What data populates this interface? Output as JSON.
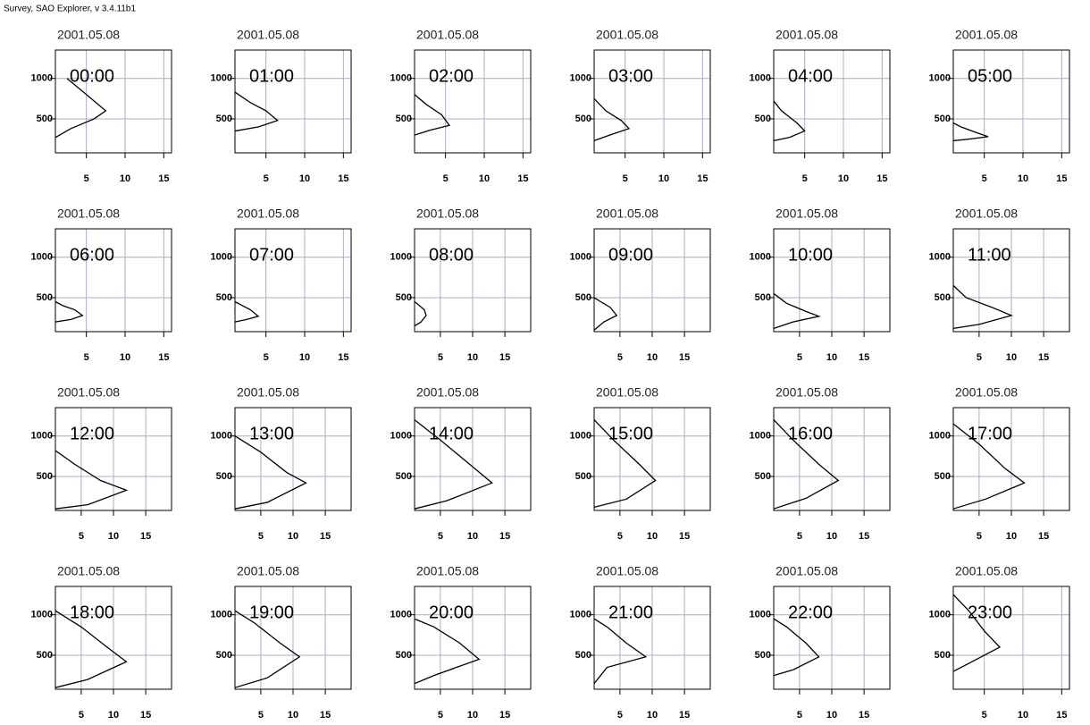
{
  "header": "Survey, SAO Explorer, v 3.4.11b1",
  "chart_data": [
    {
      "type": "line",
      "title": "2001.05.08",
      "annotation": "00:00",
      "x": [
        1,
        3,
        6,
        7.5,
        5,
        2.5
      ],
      "series": [
        {
          "color": "#000000",
          "values": [
            270,
            380,
            500,
            600,
            800,
            1000
          ]
        }
      ],
      "xlim": [
        1,
        16
      ],
      "ylim": [
        80,
        1350
      ],
      "xticks": [
        5,
        10,
        15
      ],
      "yticks": [
        500,
        1000
      ],
      "grid": true
    },
    {
      "type": "line",
      "title": "2001.05.08",
      "annotation": "01:00",
      "x": [
        1,
        4,
        6.5,
        5,
        3,
        1
      ],
      "series": [
        {
          "color": "#000000",
          "values": [
            350,
            400,
            480,
            600,
            700,
            830
          ]
        }
      ],
      "xlim": [
        1,
        16
      ],
      "ylim": [
        80,
        1350
      ],
      "xticks": [
        5,
        10,
        15
      ],
      "yticks": [
        500,
        1000
      ],
      "grid": true
    },
    {
      "type": "line",
      "title": "2001.05.08",
      "annotation": "02:00",
      "x": [
        1,
        3,
        5.5,
        4.5,
        2.5,
        1
      ],
      "series": [
        {
          "color": "#000000",
          "values": [
            300,
            360,
            420,
            550,
            680,
            800
          ]
        }
      ],
      "xlim": [
        1,
        16
      ],
      "ylim": [
        80,
        1350
      ],
      "xticks": [
        5,
        10,
        15
      ],
      "yticks": [
        500,
        1000
      ],
      "grid": true
    },
    {
      "type": "line",
      "title": "2001.05.08",
      "annotation": "03:00",
      "x": [
        1,
        3,
        5.5,
        4.5,
        2.5,
        1
      ],
      "series": [
        {
          "color": "#000000",
          "values": [
            230,
            300,
            380,
            480,
            600,
            750
          ]
        }
      ],
      "xlim": [
        1,
        16
      ],
      "ylim": [
        80,
        1350
      ],
      "xticks": [
        5,
        10,
        15
      ],
      "yticks": [
        500,
        1000
      ],
      "grid": true
    },
    {
      "type": "line",
      "title": "2001.05.08",
      "annotation": "04:00",
      "x": [
        1,
        3,
        5,
        4,
        2,
        1
      ],
      "series": [
        {
          "color": "#000000",
          "values": [
            230,
            270,
            350,
            450,
            600,
            720
          ]
        }
      ],
      "xlim": [
        1,
        16
      ],
      "ylim": [
        80,
        1350
      ],
      "xticks": [
        5,
        10,
        15
      ],
      "yticks": [
        500,
        1000
      ],
      "grid": true
    },
    {
      "type": "line",
      "title": "2001.05.08",
      "annotation": "05:00",
      "x": [
        1,
        3,
        5.5,
        4,
        2,
        1
      ],
      "series": [
        {
          "color": "#000000",
          "values": [
            230,
            250,
            280,
            330,
            400,
            450
          ]
        }
      ],
      "xlim": [
        1,
        16
      ],
      "ylim": [
        80,
        1350
      ],
      "xticks": [
        5,
        10,
        15
      ],
      "yticks": [
        500,
        1000
      ],
      "grid": true
    },
    {
      "type": "line",
      "title": "2001.05.08",
      "annotation": "06:00",
      "x": [
        1,
        3,
        4.5,
        3.5,
        2,
        1
      ],
      "series": [
        {
          "color": "#000000",
          "values": [
            200,
            230,
            280,
            350,
            400,
            450
          ]
        }
      ],
      "xlim": [
        1,
        16
      ],
      "ylim": [
        80,
        1350
      ],
      "xticks": [
        5,
        10,
        15
      ],
      "yticks": [
        500,
        1000
      ],
      "grid": true
    },
    {
      "type": "line",
      "title": "2001.05.08",
      "annotation": "07:00",
      "x": [
        1,
        2.5,
        4,
        3,
        2,
        1
      ],
      "series": [
        {
          "color": "#000000",
          "values": [
            200,
            230,
            270,
            350,
            400,
            450
          ]
        }
      ],
      "xlim": [
        1,
        16
      ],
      "ylim": [
        80,
        1350
      ],
      "xticks": [
        5,
        10,
        15
      ],
      "yticks": [
        500,
        1000
      ],
      "grid": true
    },
    {
      "type": "line",
      "title": "2001.05.08",
      "annotation": "08:00",
      "x": [
        1,
        2,
        2.8,
        2.5,
        1.5,
        1
      ],
      "series": [
        {
          "color": "#000000",
          "values": [
            150,
            200,
            280,
            350,
            420,
            450
          ]
        }
      ],
      "xlim": [
        1,
        19
      ],
      "ylim": [
        80,
        1350
      ],
      "xticks": [
        5,
        10,
        15
      ],
      "yticks": [
        500,
        1000
      ],
      "grid": true
    },
    {
      "type": "line",
      "title": "2001.05.08",
      "annotation": "09:00",
      "x": [
        1,
        2.5,
        4.5,
        3.5,
        2,
        1
      ],
      "series": [
        {
          "color": "#000000",
          "values": [
            100,
            200,
            280,
            380,
            450,
            500
          ]
        }
      ],
      "xlim": [
        1,
        19
      ],
      "ylim": [
        80,
        1350
      ],
      "xticks": [
        5,
        10,
        15
      ],
      "yticks": [
        500,
        1000
      ],
      "grid": true
    },
    {
      "type": "line",
      "title": "2001.05.08",
      "annotation": "10:00",
      "x": [
        1,
        4,
        8,
        6,
        3,
        1
      ],
      "series": [
        {
          "color": "#000000",
          "values": [
            120,
            200,
            270,
            330,
            430,
            550
          ]
        }
      ],
      "xlim": [
        1,
        19
      ],
      "ylim": [
        80,
        1350
      ],
      "xticks": [
        5,
        10,
        15
      ],
      "yticks": [
        500,
        1000
      ],
      "grid": true
    },
    {
      "type": "line",
      "title": "2001.05.08",
      "annotation": "11:00",
      "x": [
        1,
        5,
        10,
        7,
        3,
        1
      ],
      "series": [
        {
          "color": "#000000",
          "values": [
            120,
            170,
            280,
            380,
            500,
            650
          ]
        }
      ],
      "xlim": [
        1,
        19
      ],
      "ylim": [
        80,
        1350
      ],
      "xticks": [
        5,
        10,
        15
      ],
      "yticks": [
        500,
        1000
      ],
      "grid": true
    },
    {
      "type": "line",
      "title": "2001.05.08",
      "annotation": "12:00",
      "x": [
        1,
        6,
        12,
        8,
        4,
        1
      ],
      "series": [
        {
          "color": "#000000",
          "values": [
            100,
            150,
            330,
            450,
            650,
            820
          ]
        }
      ],
      "xlim": [
        1,
        19
      ],
      "ylim": [
        80,
        1350
      ],
      "xticks": [
        5,
        10,
        15
      ],
      "yticks": [
        500,
        1000
      ],
      "grid": true
    },
    {
      "type": "line",
      "title": "2001.05.08",
      "annotation": "13:00",
      "x": [
        1,
        6,
        12,
        9,
        5,
        1
      ],
      "series": [
        {
          "color": "#000000",
          "values": [
            100,
            180,
            420,
            550,
            800,
            1000
          ]
        }
      ],
      "xlim": [
        1,
        19
      ],
      "ylim": [
        80,
        1350
      ],
      "xticks": [
        5,
        10,
        15
      ],
      "yticks": [
        500,
        1000
      ],
      "grid": true
    },
    {
      "type": "line",
      "title": "2001.05.08",
      "annotation": "14:00",
      "x": [
        1,
        6,
        13,
        10,
        5,
        1
      ],
      "series": [
        {
          "color": "#000000",
          "values": [
            100,
            200,
            420,
            620,
            950,
            1200
          ]
        }
      ],
      "xlim": [
        1,
        19
      ],
      "ylim": [
        80,
        1350
      ],
      "xticks": [
        5,
        10,
        15
      ],
      "yticks": [
        500,
        1000
      ],
      "grid": true
    },
    {
      "type": "line",
      "title": "2001.05.08",
      "annotation": "15:00",
      "x": [
        1,
        6,
        10.5,
        8,
        4,
        1
      ],
      "series": [
        {
          "color": "#000000",
          "values": [
            120,
            220,
            450,
            650,
            950,
            1200
          ]
        }
      ],
      "xlim": [
        1,
        19
      ],
      "ylim": [
        80,
        1350
      ],
      "xticks": [
        5,
        10,
        15
      ],
      "yticks": [
        500,
        1000
      ],
      "grid": true
    },
    {
      "type": "line",
      "title": "2001.05.08",
      "annotation": "16:00",
      "x": [
        1,
        6,
        11,
        8,
        4,
        1
      ],
      "series": [
        {
          "color": "#000000",
          "values": [
            100,
            230,
            450,
            650,
            950,
            1200
          ]
        }
      ],
      "xlim": [
        1,
        19
      ],
      "ylim": [
        80,
        1350
      ],
      "xticks": [
        5,
        10,
        15
      ],
      "yticks": [
        500,
        1000
      ],
      "grid": true
    },
    {
      "type": "line",
      "title": "2001.05.08",
      "annotation": "17:00",
      "x": [
        1,
        6,
        12,
        9,
        5,
        1
      ],
      "series": [
        {
          "color": "#000000",
          "values": [
            100,
            220,
            420,
            600,
            900,
            1150
          ]
        }
      ],
      "xlim": [
        1,
        19
      ],
      "ylim": [
        80,
        1350
      ],
      "xticks": [
        5,
        10,
        15
      ],
      "yticks": [
        500,
        1000
      ],
      "grid": true
    },
    {
      "type": "line",
      "title": "2001.05.08",
      "annotation": "18:00",
      "x": [
        1,
        6,
        12,
        9,
        5,
        1
      ],
      "series": [
        {
          "color": "#000000",
          "values": [
            100,
            200,
            420,
            600,
            850,
            1050
          ]
        }
      ],
      "xlim": [
        1,
        19
      ],
      "ylim": [
        80,
        1350
      ],
      "xticks": [
        5,
        10,
        15
      ],
      "yticks": [
        500,
        1000
      ],
      "grid": true
    },
    {
      "type": "line",
      "title": "2001.05.08",
      "annotation": "19:00",
      "x": [
        1,
        6,
        11,
        8,
        4,
        1
      ],
      "series": [
        {
          "color": "#000000",
          "values": [
            100,
            220,
            480,
            650,
            900,
            1050
          ]
        }
      ],
      "xlim": [
        1,
        19
      ],
      "ylim": [
        80,
        1350
      ],
      "xticks": [
        5,
        10,
        15
      ],
      "yticks": [
        500,
        1000
      ],
      "grid": true
    },
    {
      "type": "line",
      "title": "2001.05.08",
      "annotation": "20:00",
      "x": [
        1,
        4,
        11,
        8,
        4,
        1
      ],
      "series": [
        {
          "color": "#000000",
          "values": [
            150,
            250,
            450,
            650,
            850,
            950
          ]
        }
      ],
      "xlim": [
        1,
        19
      ],
      "ylim": [
        80,
        1350
      ],
      "xticks": [
        5,
        10,
        15
      ],
      "yticks": [
        500,
        1000
      ],
      "grid": true
    },
    {
      "type": "line",
      "title": "2001.05.08",
      "annotation": "21:00",
      "x": [
        1,
        3,
        9,
        6,
        3,
        1
      ],
      "series": [
        {
          "color": "#000000",
          "values": [
            150,
            350,
            480,
            650,
            850,
            950
          ]
        }
      ],
      "xlim": [
        1,
        19
      ],
      "ylim": [
        80,
        1350
      ],
      "xticks": [
        5,
        10,
        15
      ],
      "yticks": [
        500,
        1000
      ],
      "grid": true
    },
    {
      "type": "line",
      "title": "2001.05.08",
      "annotation": "22:00",
      "x": [
        1,
        4,
        8,
        6,
        3,
        1
      ],
      "series": [
        {
          "color": "#000000",
          "values": [
            250,
            320,
            480,
            650,
            850,
            950
          ]
        }
      ],
      "xlim": [
        1,
        19
      ],
      "ylim": [
        80,
        1350
      ],
      "xticks": [
        5,
        10,
        15
      ],
      "yticks": [
        500,
        1000
      ],
      "grid": true
    },
    {
      "type": "line",
      "title": "2001.05.08",
      "annotation": "23:00",
      "x": [
        1,
        3,
        7,
        5,
        3,
        1
      ],
      "series": [
        {
          "color": "#000000",
          "values": [
            300,
            400,
            600,
            800,
            1050,
            1250
          ]
        }
      ],
      "xlim": [
        1,
        16
      ],
      "ylim": [
        80,
        1350
      ],
      "xticks": [
        5,
        10,
        15
      ],
      "yticks": [
        500,
        1000
      ],
      "grid": true
    }
  ]
}
